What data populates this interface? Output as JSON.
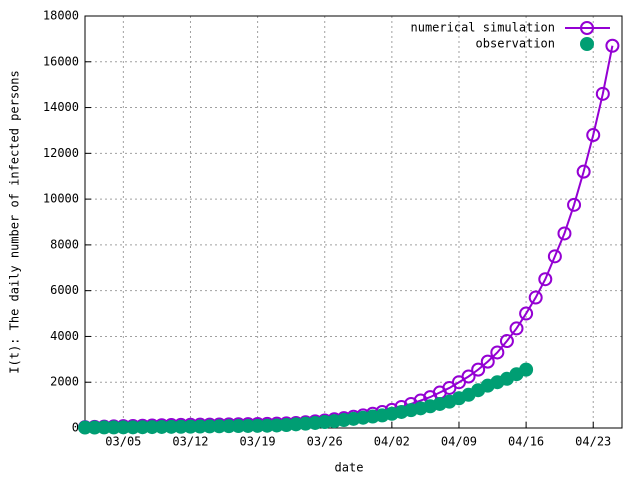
{
  "chart_data": {
    "type": "line",
    "xlabel": "date",
    "ylabel": "I(t): The daily number of infected persons",
    "x": [
      "03/01",
      "03/02",
      "03/03",
      "03/04",
      "03/05",
      "03/06",
      "03/07",
      "03/08",
      "03/09",
      "03/10",
      "03/11",
      "03/12",
      "03/13",
      "03/14",
      "03/15",
      "03/16",
      "03/17",
      "03/18",
      "03/19",
      "03/20",
      "03/21",
      "03/22",
      "03/23",
      "03/24",
      "03/25",
      "03/26",
      "03/27",
      "03/28",
      "03/29",
      "03/30",
      "03/31",
      "04/01",
      "04/02",
      "04/03",
      "04/04",
      "04/05",
      "04/06",
      "04/07",
      "04/08",
      "04/09",
      "04/10",
      "04/11",
      "04/12",
      "04/13",
      "04/14",
      "04/15",
      "04/16",
      "04/17",
      "04/18",
      "04/19",
      "04/20",
      "04/21",
      "04/22",
      "04/23",
      "04/24",
      "04/25"
    ],
    "series": [
      {
        "name": "numerical simulation",
        "color": "#9400d3",
        "marker": "open-circle",
        "line": true,
        "values": [
          40,
          50,
          60,
          70,
          80,
          90,
          100,
          110,
          120,
          130,
          135,
          140,
          145,
          150,
          155,
          160,
          165,
          170,
          175,
          180,
          190,
          200,
          220,
          250,
          290,
          330,
          380,
          430,
          490,
          550,
          620,
          700,
          790,
          920,
          1050,
          1200,
          1350,
          1550,
          1750,
          2000,
          2250,
          2550,
          2900,
          3300,
          3800,
          4350,
          5000,
          5700,
          6500,
          7500,
          8500,
          9750,
          11200,
          12800,
          14600,
          16700
        ]
      },
      {
        "name": "observation",
        "color": "#009e73",
        "marker": "filled-circle",
        "line": false,
        "values": [
          20,
          20,
          25,
          25,
          30,
          30,
          35,
          40,
          45,
          50,
          55,
          60,
          65,
          70,
          75,
          80,
          85,
          90,
          95,
          100,
          110,
          130,
          160,
          190,
          220,
          260,
          300,
          350,
          400,
          450,
          500,
          550,
          620,
          700,
          780,
          860,
          950,
          1050,
          1150,
          1300,
          1450,
          1650,
          1850,
          2000,
          2150,
          2350,
          2550,
          null,
          null,
          null,
          null,
          null,
          null,
          null,
          null,
          null
        ]
      }
    ],
    "xlim": [
      "03/01",
      "04/26"
    ],
    "xticks": [
      "03/05",
      "03/12",
      "03/19",
      "03/26",
      "04/02",
      "04/09",
      "04/16",
      "04/23"
    ],
    "ylim": [
      0,
      18000
    ],
    "yticks": [
      0,
      2000,
      4000,
      6000,
      8000,
      10000,
      12000,
      14000,
      16000,
      18000
    ],
    "grid": true,
    "legend": "top-right"
  }
}
